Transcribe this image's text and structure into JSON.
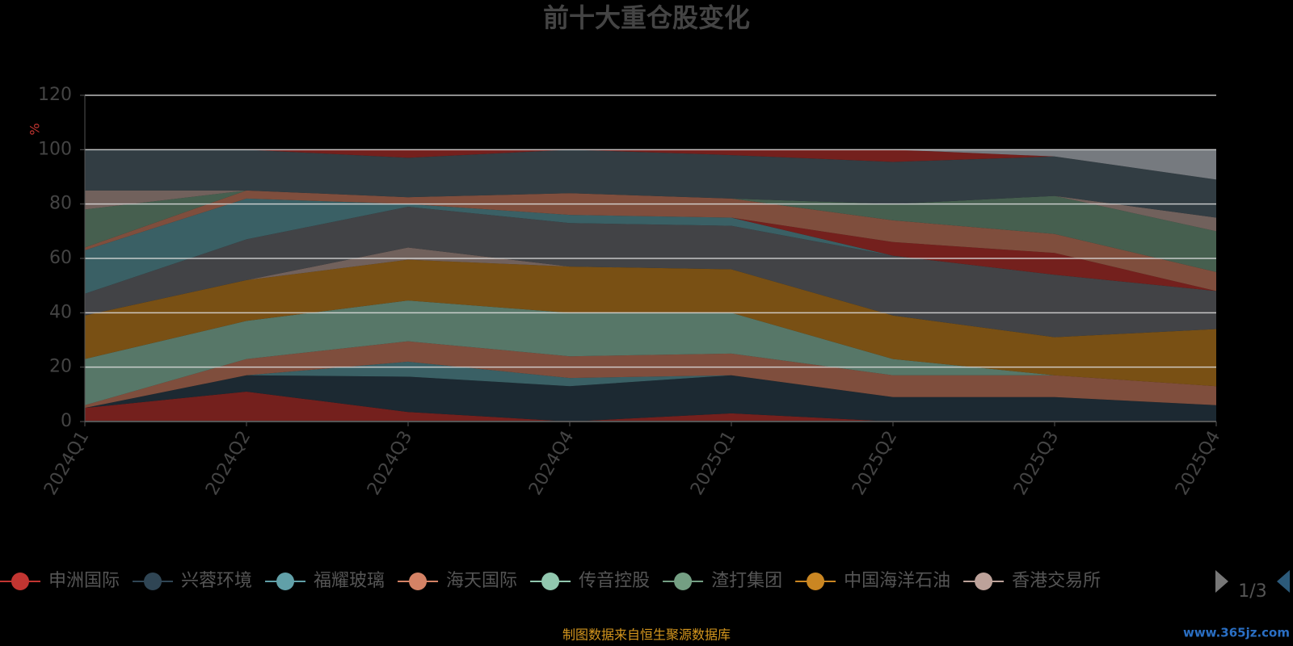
{
  "chart_data": {
    "type": "stacked_area",
    "title": "前十大重仓股变化",
    "y_label": "%",
    "footer": "制图数据来自恒生聚源数据库",
    "watermark": "www.365jz.com",
    "legend_page": "1/3",
    "categories": [
      "2024Q1",
      "2024Q2",
      "2024Q3",
      "2024Q4",
      "2025Q1",
      "2025Q2",
      "2025Q3",
      "2025Q4"
    ],
    "ylim": [
      0,
      120
    ],
    "yticks": [
      0,
      20,
      40,
      60,
      80,
      100,
      120
    ],
    "grid": true,
    "series": [
      {
        "name": "申洲国际",
        "color": "#c23531",
        "values": [
          5,
          11,
          3.5,
          0,
          3,
          0,
          0,
          0
        ]
      },
      {
        "name": "兴蓉环境",
        "color": "#2f4554",
        "values": [
          0,
          6,
          13,
          13,
          14,
          9,
          9,
          6
        ]
      },
      {
        "name": "福耀玻璃",
        "color": "#61a0a8",
        "values": [
          0,
          0,
          5.5,
          3,
          0,
          0,
          0,
          0
        ]
      },
      {
        "name": "海天国际",
        "color": "#d48265",
        "values": [
          1,
          6,
          7.5,
          8,
          8,
          8,
          8,
          7
        ]
      },
      {
        "name": "传音控股",
        "color": "#91c7ae",
        "values": [
          17,
          14,
          15,
          16,
          15,
          6,
          0,
          0
        ]
      },
      {
        "name": "渣打集团",
        "color": "#749f83",
        "values": [
          0,
          0,
          0,
          0,
          0,
          0,
          0,
          0
        ]
      },
      {
        "name": "中国海洋石油",
        "color": "#ca8622",
        "values": [
          16,
          15,
          15,
          17,
          16,
          16,
          14,
          21
        ]
      },
      {
        "name": "香港交易所",
        "color": "#bda29a",
        "values": [
          0,
          0,
          4.5,
          0,
          0,
          0,
          0,
          0
        ]
      },
      {
        "color": "#6e7074",
        "values": [
          8,
          15,
          15,
          16,
          16,
          22,
          23,
          14
        ]
      },
      {
        "color": "#61a0a8",
        "values": [
          16,
          15,
          1,
          3,
          3,
          0,
          0,
          0
        ]
      },
      {
        "color": "#c23531",
        "values": [
          0,
          0,
          0,
          0,
          0,
          5,
          8,
          0
        ]
      },
      {
        "color": "#d48265",
        "values": [
          1,
          3,
          2.5,
          8,
          7,
          8,
          7,
          7
        ]
      },
      {
        "color": "#749f83",
        "values": [
          14,
          0,
          0,
          0,
          0,
          6,
          14,
          15
        ]
      },
      {
        "color": "#bda29a",
        "values": [
          7,
          0,
          0,
          0,
          0,
          0,
          0,
          5
        ]
      },
      {
        "color": "#546570",
        "values": [
          15,
          15,
          14.5,
          16,
          16,
          15.5,
          14.5,
          14
        ]
      },
      {
        "color": "#c23531",
        "values": [
          0,
          0,
          3,
          0,
          2,
          4.5,
          0,
          0
        ]
      },
      {
        "color": "#c4ccd3",
        "values": [
          0,
          0,
          0,
          0,
          0,
          0,
          2.5,
          11
        ]
      }
    ]
  }
}
